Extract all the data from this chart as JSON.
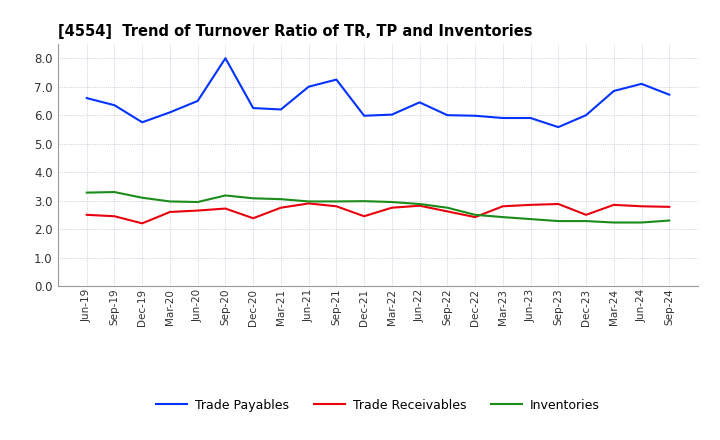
{
  "title": "[4554]  Trend of Turnover Ratio of TR, TP and Inventories",
  "labels": [
    "Jun-19",
    "Sep-19",
    "Dec-19",
    "Mar-20",
    "Jun-20",
    "Sep-20",
    "Dec-20",
    "Mar-21",
    "Jun-21",
    "Sep-21",
    "Dec-21",
    "Mar-22",
    "Jun-22",
    "Sep-22",
    "Dec-22",
    "Mar-23",
    "Jun-23",
    "Sep-23",
    "Dec-23",
    "Mar-24",
    "Jun-24",
    "Sep-24"
  ],
  "trade_receivables": [
    2.5,
    2.45,
    2.2,
    2.6,
    2.65,
    2.72,
    2.38,
    2.75,
    2.9,
    2.8,
    2.45,
    2.75,
    2.82,
    2.62,
    2.42,
    2.8,
    2.85,
    2.88,
    2.5,
    2.85,
    2.8,
    2.78
  ],
  "trade_payables": [
    6.6,
    6.35,
    5.75,
    6.1,
    6.5,
    8.0,
    6.25,
    6.2,
    7.0,
    7.25,
    5.98,
    6.02,
    6.45,
    6.0,
    5.98,
    5.9,
    5.9,
    5.58,
    6.0,
    6.85,
    7.1,
    6.72
  ],
  "inventories": [
    3.28,
    3.3,
    3.1,
    2.97,
    2.95,
    3.18,
    3.08,
    3.05,
    2.97,
    2.97,
    2.98,
    2.95,
    2.88,
    2.75,
    2.5,
    2.42,
    2.35,
    2.28,
    2.28,
    2.23,
    2.23,
    2.3
  ],
  "tr_color": "#e8000d",
  "tp_color": "#0433ff",
  "inv_color": "#1a8c1a",
  "ylim": [
    0.0,
    8.5
  ],
  "yticks": [
    0.0,
    1.0,
    2.0,
    3.0,
    4.0,
    5.0,
    6.0,
    7.0,
    8.0
  ],
  "grid_color": "#b0b0c8",
  "bg_color": "#ffffff",
  "legend_tr": "Trade Receivables",
  "legend_tp": "Trade Payables",
  "legend_inv": "Inventories"
}
